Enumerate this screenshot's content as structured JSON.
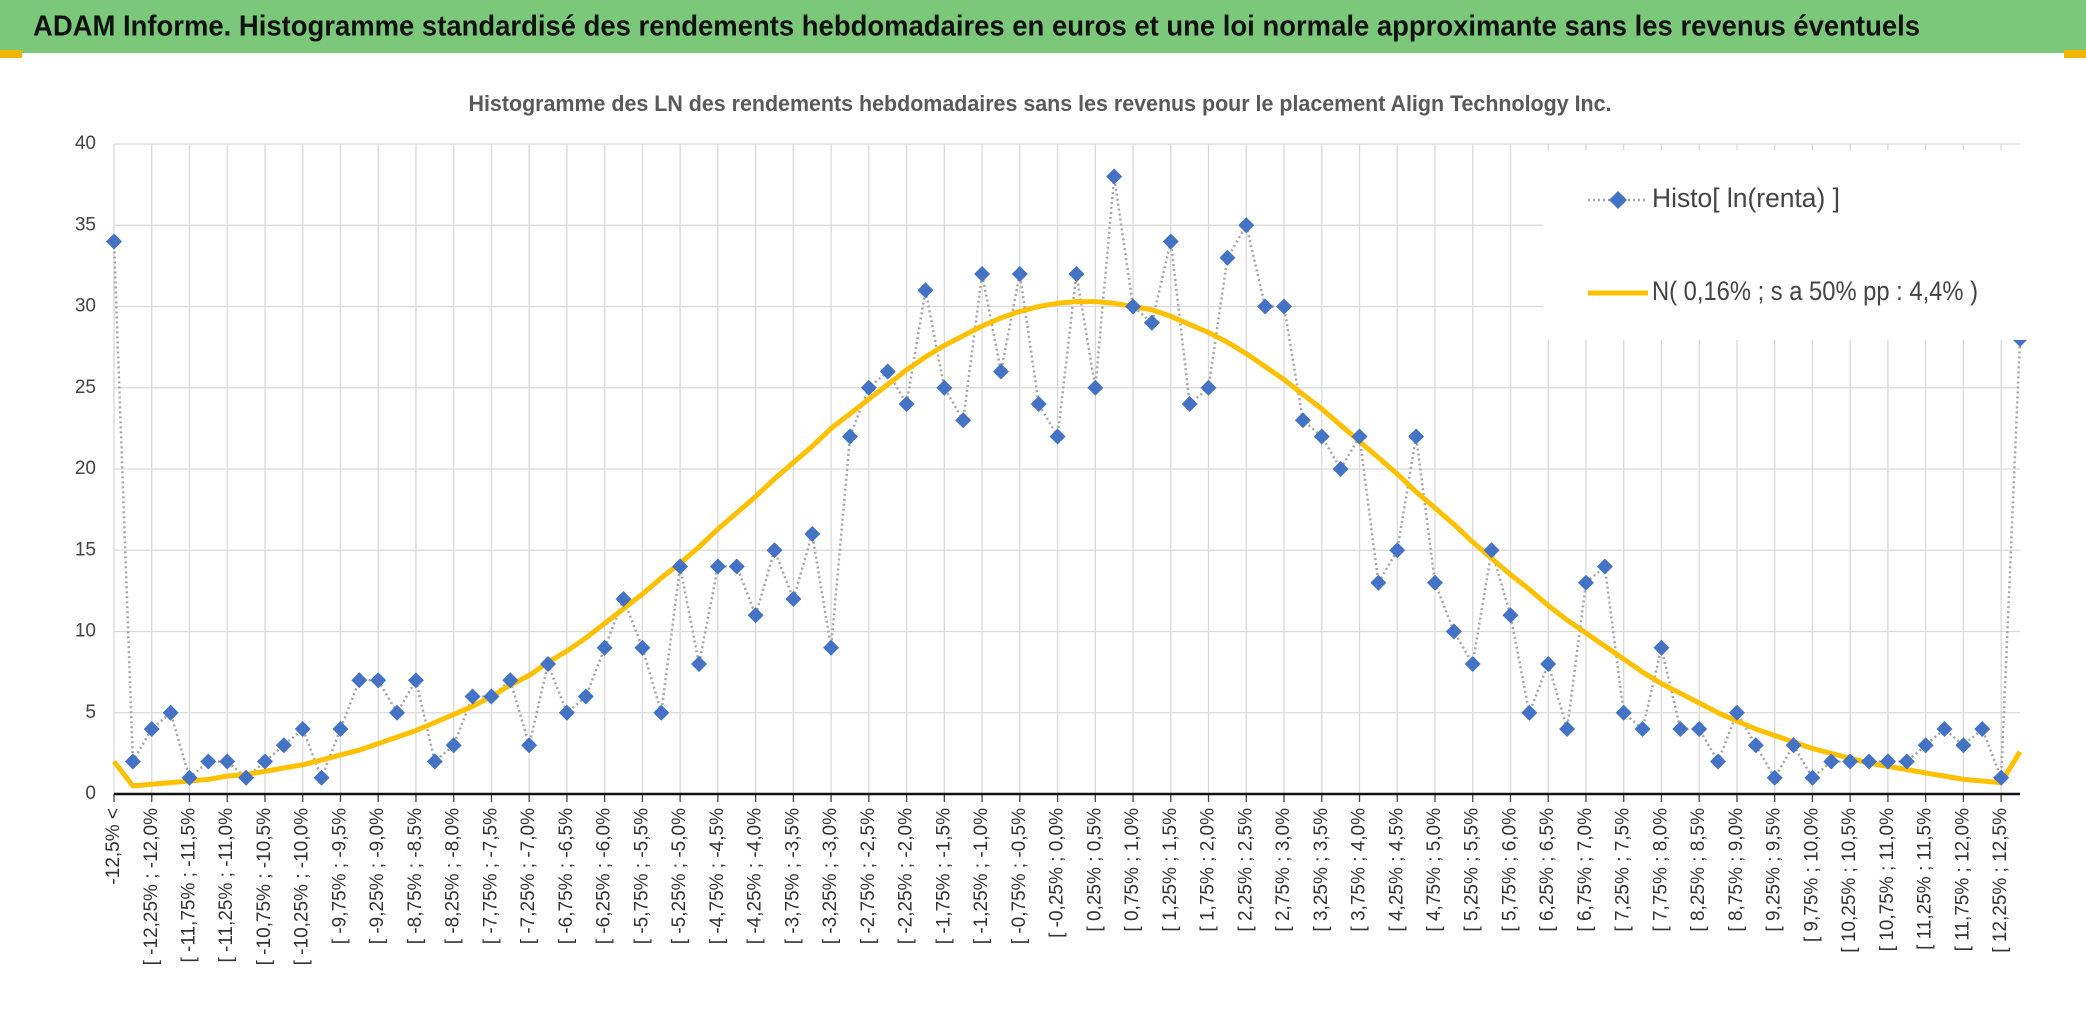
{
  "header": {
    "title": "ADAM Informe. Histogramme standardisé des rendements hebdomadaires en euros et une loi normale approximante sans les revenus éventuels"
  },
  "chart_data": {
    "type": "line",
    "title": "Histogramme des LN des rendements hebdomadaires sans les revenus pour le placement Align Technology Inc.",
    "categories": [
      "-12,5% <",
      null,
      "[ -12,25% ; -12,0%",
      null,
      "[ -11,75% ; -11,5%",
      null,
      "[ -11,25% ; -11,0%",
      null,
      "[ -10,75% ; -10,5%",
      null,
      "[ -10,25% ; -10,0%",
      null,
      "[ -9,75% ; -9,5%",
      null,
      "[ -9,25% ; -9,0%",
      null,
      "[ -8,75% ; -8,5%",
      null,
      "[ -8,25% ; -8,0%",
      null,
      "[ -7,75% ; -7,5%",
      null,
      "[ -7,25% ; -7,0%",
      null,
      "[ -6,75% ; -6,5%",
      null,
      "[ -6,25% ; -6,0%",
      null,
      "[ -5,75% ; -5,5%",
      null,
      "[ -5,25% ; -5,0%",
      null,
      "[ -4,75% ; -4,5%",
      null,
      "[ -4,25% ; -4,0%",
      null,
      "[ -3,75% ; -3,5%",
      null,
      "[ -3,25% ; -3,0%",
      null,
      "[ -2,75% ; -2,5%",
      null,
      "[ -2,25% ; -2,0%",
      null,
      "[ -1,75% ; -1,5%",
      null,
      "[ -1,25% ; -1,0%",
      null,
      "[ -0,75% ; -0,5%",
      null,
      "[ -0,25% ; 0,0%",
      null,
      "[ 0,25% ; 0,5%",
      null,
      "[ 0,75% ; 1,0%",
      null,
      "[ 1,25% ; 1,5%",
      null,
      "[ 1,75% ; 2,0%",
      null,
      "[ 2,25% ; 2,5%",
      null,
      "[ 2,75% ; 3,0%",
      null,
      "[ 3,25% ; 3,5%",
      null,
      "[ 3,75% ; 4,0%",
      null,
      "[ 4,25% ; 4,5%",
      null,
      "[ 4,75% ; 5,0%",
      null,
      "[ 5,25% ; 5,5%",
      null,
      "[ 5,75% ; 6,0%",
      null,
      "[ 6,25% ; 6,5%",
      null,
      "[ 6,75% ; 7,0%",
      null,
      "[ 7,25% ; 7,5%",
      null,
      "[ 7,75% ; 8,0%",
      null,
      "[ 8,25% ; 8,5%",
      null,
      "[ 8,75% ; 9,0%",
      null,
      "[ 9,25% ; 9,5%",
      null,
      "[ 9,75% ; 10,0%",
      null,
      "[ 10,25% ; 10,5%",
      null,
      "[ 10,75% ; 11,0%",
      null,
      "[ 11,25% ; 11,5%",
      null,
      "[ 11,75% ; 12,0%",
      null,
      "[ 12,25% ; 12,5%",
      null
    ],
    "series": [
      {
        "name": "Histo[ ln(renta) ]",
        "color": "#4472c4",
        "line_color": "#a5a5a5",
        "values": [
          34,
          2,
          4,
          5,
          1,
          2,
          2,
          1,
          2,
          3,
          4,
          1,
          4,
          7,
          7,
          5,
          7,
          2,
          3,
          6,
          6,
          7,
          3,
          8,
          5,
          6,
          9,
          12,
          9,
          5,
          14,
          8,
          14,
          14,
          11,
          15,
          12,
          16,
          9,
          22,
          25,
          26,
          24,
          31,
          25,
          23,
          32,
          26,
          32,
          24,
          22,
          32,
          25,
          38,
          30,
          29,
          34,
          24,
          25,
          33,
          35,
          30,
          30,
          23,
          22,
          20,
          22,
          13,
          15,
          22,
          13,
          10,
          8,
          15,
          11,
          5,
          8,
          4,
          13,
          14,
          5,
          4,
          9,
          4,
          4,
          2,
          5,
          3,
          1,
          3,
          1,
          2,
          2,
          2,
          2,
          2,
          3,
          4,
          3,
          4,
          1,
          28
        ]
      },
      {
        "name": "N( 0,16% ; s a 50% pp : 4,4% )",
        "color": "#ffc000",
        "values": [
          2.0,
          0.5,
          0.6,
          0.7,
          0.8,
          0.9,
          1.1,
          1.2,
          1.4,
          1.6,
          1.8,
          2.1,
          2.4,
          2.7,
          3.1,
          3.5,
          3.9,
          4.4,
          4.9,
          5.4,
          6.0,
          6.7,
          7.3,
          8.1,
          8.8,
          9.6,
          10.5,
          11.4,
          12.3,
          13.3,
          14.2,
          15.2,
          16.3,
          17.3,
          18.3,
          19.4,
          20.4,
          21.4,
          22.5,
          23.4,
          24.3,
          25.2,
          26.1,
          26.9,
          27.6,
          28.2,
          28.8,
          29.3,
          29.7,
          30.0,
          30.2,
          30.3,
          30.3,
          30.2,
          30.0,
          29.8,
          29.4,
          28.9,
          28.4,
          27.8,
          27.1,
          26.3,
          25.5,
          24.6,
          23.7,
          22.7,
          21.7,
          20.7,
          19.7,
          18.6,
          17.6,
          16.6,
          15.5,
          14.5,
          13.5,
          12.6,
          11.6,
          10.7,
          9.9,
          9.1,
          8.3,
          7.5,
          6.8,
          6.2,
          5.6,
          5.0,
          4.5,
          4.0,
          3.6,
          3.2,
          2.8,
          2.5,
          2.2,
          1.9,
          1.7,
          1.5,
          1.3,
          1.1,
          0.9,
          0.8,
          0.7,
          2.6
        ]
      }
    ],
    "ylim": [
      0,
      40
    ],
    "yticks": [
      0,
      5,
      10,
      15,
      20,
      25,
      30,
      35,
      40
    ],
    "grid": true,
    "legend": "upper right"
  }
}
